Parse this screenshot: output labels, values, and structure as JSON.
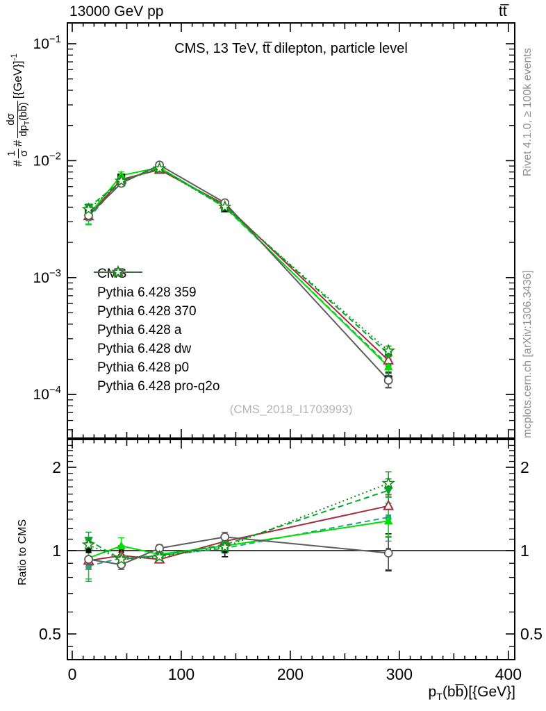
{
  "figure": {
    "top_left_label": "13000 GeV pp",
    "top_right_label": "tt̅",
    "panel_title": "CMS, 13 TeV, tt̅ dilepton, particle level",
    "watermark": "(CMS_2018_I1703993)",
    "right_label_top": "Rivet 4.1.0, ≥ 100k events",
    "right_label_bottom": "mcplots.cern.ch [arXiv:1306.3436]",
    "ratio_ylabel": "Ratio to CMS",
    "xlabel": {
      "pre": "p",
      "sub": "T",
      "post": "(bb̅)[{GeV}]"
    },
    "ylabel": {
      "hash1": "#",
      "frac1_num": "1",
      "frac1_den": "σ",
      "hash2": "#",
      "frac2_num": "dσ",
      "frac2_den_pre": "dp",
      "frac2_den_sub": "T",
      "frac2_den_post": "(bb̅)",
      "unit": "[{GeV}]",
      "exponent": "-1"
    }
  },
  "chart_data": {
    "type": "line",
    "title": "CMS, 13 TeV, tt̅ dilepton, particle level",
    "xlabel": "p_T(bb̅) [{GeV}]",
    "ylabel_main": "#1/σ# dσ/dp_T(bb̅) [{GeV}]^-1",
    "ylabel_ratio": "Ratio to CMS",
    "x_values": [
      15,
      45,
      80,
      140,
      290
    ],
    "xlim": [
      -4.5,
      406
    ],
    "xticks": [
      0,
      100,
      200,
      300,
      400
    ],
    "x_minor_step": 10,
    "main_ylog": true,
    "main_ylim": [
      4.3e-05,
      0.151
    ],
    "main_yticks_exponents": [
      -1,
      -2,
      -3,
      -4
    ],
    "ratio_ylog": true,
    "ratio_ylim": [
      0.403,
      2.52
    ],
    "ratio_ticks": [
      0.5,
      1,
      2
    ],
    "ratio_minor_ticks": [
      0.45,
      0.6,
      0.7,
      0.8,
      0.9,
      1.1,
      1.2,
      1.3,
      1.4,
      1.5,
      1.6,
      1.7,
      1.8,
      1.9,
      2.1,
      2.2,
      2.3,
      2.4,
      2.5
    ],
    "grid": false,
    "legend_position": "middle-left",
    "reference": {
      "name": "CMS",
      "color": "#000000",
      "marker": "square-filled",
      "line": "none",
      "values": [
        0.00365,
        0.0072,
        0.009,
        0.0039,
        0.000135
      ],
      "frac_err": [
        0.07,
        0.04,
        0.03,
        0.05,
        0.15
      ]
    },
    "series": [
      {
        "name": "Pythia 6.428 359",
        "color": "#21a883",
        "line": "dashed",
        "marker": "square-filled-small",
        "ratio": [
          0.88,
          0.94,
          0.96,
          1.02,
          1.32
        ],
        "frac_err": [
          0.12,
          0.05,
          0.03,
          0.04,
          0.18
        ]
      },
      {
        "name": "Pythia 6.428 370",
        "color": "#a22c3e",
        "line": "solid",
        "marker": "triangle-up-open",
        "ratio": [
          0.92,
          0.96,
          0.93,
          1.08,
          1.45
        ],
        "frac_err": [
          0.07,
          0.04,
          0.03,
          0.04,
          0.1
        ]
      },
      {
        "name": "Pythia 6.428 a",
        "color": "#00dd00",
        "line": "solid",
        "marker": "triangle-up-filled",
        "ratio": [
          0.94,
          1.04,
          0.97,
          1.04,
          1.28
        ],
        "frac_err": [
          0.16,
          0.07,
          0.04,
          0.05,
          0.12
        ]
      },
      {
        "name": "Pythia 6.428 dw",
        "color": "#00a82a",
        "line": "dashed",
        "marker": "triangle-down-filled",
        "ratio": [
          1.09,
          0.93,
          0.96,
          1.05,
          1.65
        ],
        "frac_err": [
          0.07,
          0.04,
          0.03,
          0.04,
          0.1
        ]
      },
      {
        "name": "Pythia 6.428 p0",
        "color": "#5c5c5c",
        "line": "solid",
        "marker": "circle-open",
        "ratio": [
          0.93,
          0.89,
          1.02,
          1.12,
          0.98
        ],
        "frac_err": [
          0.06,
          0.04,
          0.03,
          0.04,
          0.14
        ]
      },
      {
        "name": "Pythia 6.428 pro-q2o",
        "color": "#128a12",
        "line": "dotted",
        "marker": "star-open",
        "ratio": [
          1.05,
          0.93,
          0.95,
          1.03,
          1.75
        ],
        "frac_err": [
          0.06,
          0.04,
          0.03,
          0.04,
          0.1
        ]
      }
    ]
  }
}
